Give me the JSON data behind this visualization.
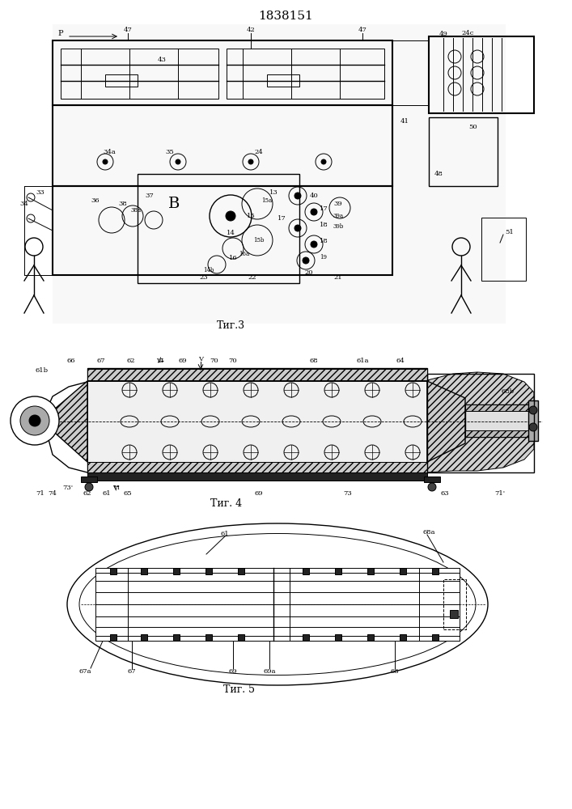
{
  "patent_number": "1838151",
  "bg_color": "#ffffff",
  "line_color": "#000000",
  "fig_width": 7.07,
  "fig_height": 10.0,
  "fig3_caption": "Τиг.3",
  "fig4_caption": "Τиг. 4",
  "fig5_caption": "Τиг. 5",
  "hatch_color": "#555555"
}
